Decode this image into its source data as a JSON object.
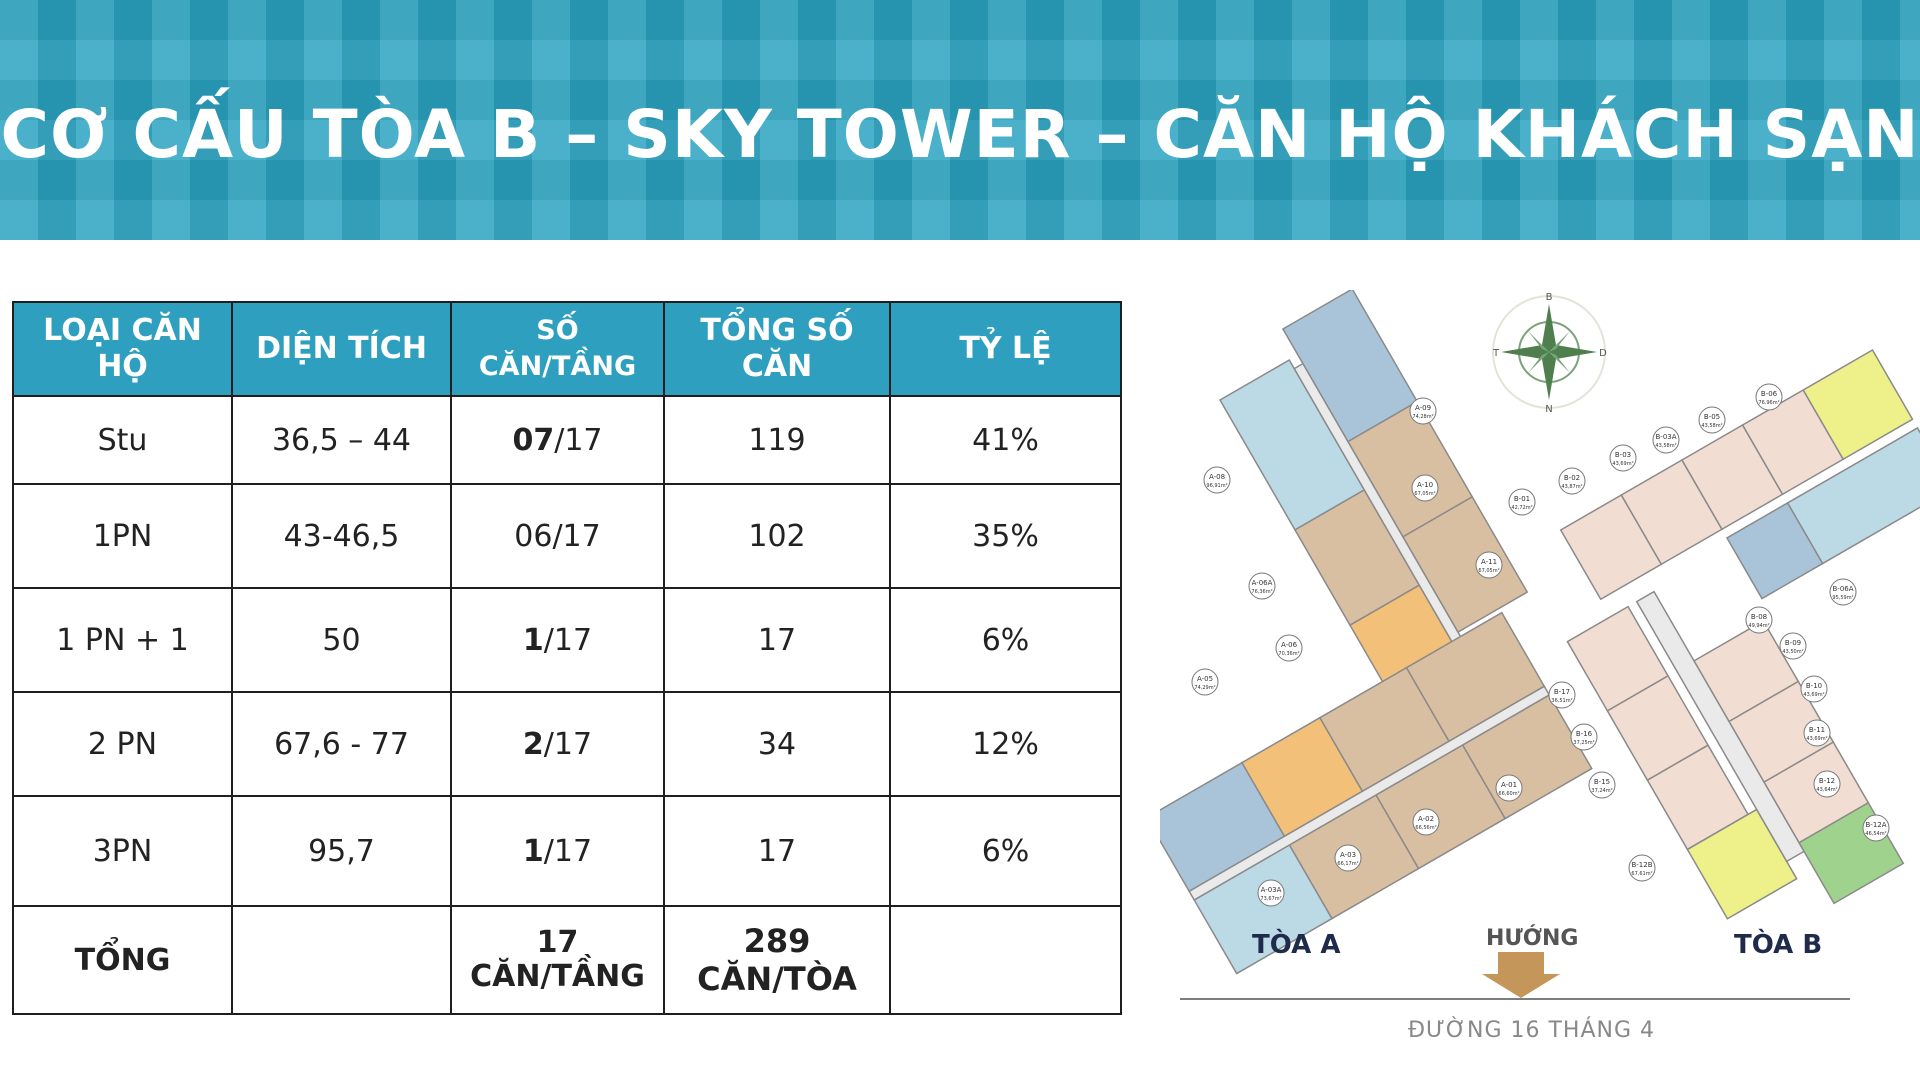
{
  "header": {
    "title": "CƠ CẤU TÒA B – SKY TOWER – CĂN HỘ KHÁCH SẠN"
  },
  "table": {
    "headers": [
      [
        "LOẠI CĂN",
        "HỘ"
      ],
      [
        "DIỆN TÍCH"
      ],
      [
        "SỐ",
        "CĂN/TẦNG"
      ],
      [
        "TỔNG SỐ",
        "CĂN"
      ],
      [
        "TỶ LỆ"
      ]
    ],
    "rows": [
      {
        "type": "Stu",
        "area": "36,5 – 44",
        "per_floor_bold": "07",
        "per_floor_rest": "/17",
        "total": "119",
        "ratio": "41%"
      },
      {
        "type": "1PN",
        "area": "43-46,5",
        "per_floor_bold": "",
        "per_floor_rest": "06/17",
        "total": "102",
        "ratio": "35%"
      },
      {
        "type": "1 PN + 1",
        "area": "50",
        "per_floor_bold": "1",
        "per_floor_rest": "/17",
        "total": "17",
        "ratio": "6%"
      },
      {
        "type": "2 PN",
        "area": "67,6 - 77",
        "per_floor_bold": "2",
        "per_floor_rest": "/17",
        "total": "34",
        "ratio": "12%"
      },
      {
        "type": "3PN",
        "area": "95,7",
        "per_floor_bold": "1",
        "per_floor_rest": "/17",
        "total": "17",
        "ratio": "6%"
      }
    ],
    "total_row": {
      "label": "TỔNG",
      "per_floor": [
        "17",
        "CĂN/TẦNG"
      ],
      "total": [
        "289",
        "CĂN/TÒA"
      ]
    }
  },
  "floorplan": {
    "compass": {
      "n": "B",
      "s": "N",
      "w": "T",
      "e": "D"
    },
    "tower_a_label": "TÒA A",
    "tower_b_label": "TÒA B",
    "direction_label": "HƯỚNG",
    "street_label": "ĐƯỜNG 16 THÁNG 4",
    "units": [
      {
        "code": "A-09",
        "area": "74,28m²"
      },
      {
        "code": "A-08",
        "area": "96,91m²"
      },
      {
        "code": "A-10",
        "area": "67,05m²"
      },
      {
        "code": "A-11",
        "area": "67,05m²"
      },
      {
        "code": "A-06A",
        "area": "76,36m²"
      },
      {
        "code": "A-06",
        "area": "70,36m²"
      },
      {
        "code": "A-05",
        "area": "74,29m²"
      },
      {
        "code": "A-01",
        "area": "66,60m²"
      },
      {
        "code": "A-02",
        "area": "66,56m²"
      },
      {
        "code": "A-03",
        "area": "66,17m²"
      },
      {
        "code": "A-03A",
        "area": "73,67m²"
      },
      {
        "code": "B-06",
        "area": "76,96m²"
      },
      {
        "code": "B-05",
        "area": "43,58m²"
      },
      {
        "code": "B-03A",
        "area": "43,58m²"
      },
      {
        "code": "B-03",
        "area": "43,69m²"
      },
      {
        "code": "B-02",
        "area": "43,87m²"
      },
      {
        "code": "B-01",
        "area": "42,72m²"
      },
      {
        "code": "B-06A",
        "area": "95,59m²"
      },
      {
        "code": "B-08",
        "area": "49,94m²"
      },
      {
        "code": "B-09",
        "area": "43,50m²"
      },
      {
        "code": "B-10",
        "area": "43,69m²"
      },
      {
        "code": "B-11",
        "area": "43,69m²"
      },
      {
        "code": "B-12",
        "area": "43,64m²"
      },
      {
        "code": "B-12A",
        "area": "46,54m²"
      },
      {
        "code": "B-12B",
        "area": "67,61m²"
      },
      {
        "code": "B-15",
        "area": "37,24m²"
      },
      {
        "code": "B-16",
        "area": "37,25m²"
      },
      {
        "code": "B-17",
        "area": "36,51m²"
      }
    ],
    "colors": {
      "blue": "#bcd9e6",
      "tan": "#d8bfa2",
      "orange": "#f3c07a",
      "pink": "#f1ddd2",
      "yellow": "#eef08a",
      "green": "#9fd38d",
      "steel": "#a9c4d9"
    }
  }
}
